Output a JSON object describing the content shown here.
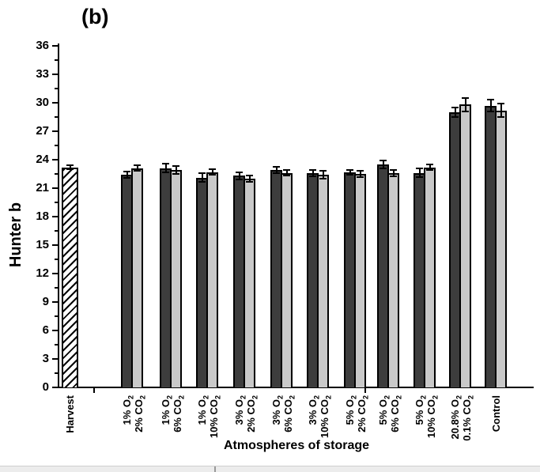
{
  "chart_data": {
    "type": "bar",
    "panel_label": "(b)",
    "xlabel": "Atmospheres of storage",
    "ylabel": "Hunter b",
    "ylim": [
      0,
      36
    ],
    "ytick_step": 3,
    "yticks": [
      0,
      3,
      6,
      9,
      12,
      15,
      18,
      21,
      24,
      27,
      30,
      33,
      36
    ],
    "legend": "none",
    "grid": "off",
    "colors": {
      "dark": "#3d3d3d",
      "light": "#c9c9c9",
      "hatch": "#000000"
    },
    "series_note": [
      {
        "name": "dark-bars",
        "style": "dark gray filled"
      },
      {
        "name": "light-bars",
        "style": "light gray filled"
      },
      {
        "name": "harvest-bar",
        "style": "white with diagonal hatch"
      }
    ],
    "groups": [
      {
        "label_lines": [
          "Harvest"
        ],
        "hatched": true,
        "bars": [
          {
            "value": 23.2,
            "error": 0.2
          }
        ]
      },
      {
        "label_lines": [
          "1% O2",
          "2% CO2"
        ],
        "bars": [
          {
            "value": 22.4,
            "error": 0.35
          },
          {
            "value": 23.1,
            "error": 0.3
          }
        ]
      },
      {
        "label_lines": [
          "1% O2",
          "6% CO2"
        ],
        "bars": [
          {
            "value": 23.1,
            "error": 0.45
          },
          {
            "value": 22.9,
            "error": 0.4
          }
        ]
      },
      {
        "label_lines": [
          "1% O2",
          "10% CO2"
        ],
        "bars": [
          {
            "value": 22.1,
            "error": 0.45
          },
          {
            "value": 22.7,
            "error": 0.3
          }
        ]
      },
      {
        "label_lines": [
          "3% O2",
          "2% CO2"
        ],
        "bars": [
          {
            "value": 22.3,
            "error": 0.4
          },
          {
            "value": 22.0,
            "error": 0.35
          }
        ]
      },
      {
        "label_lines": [
          "3% O2",
          "6% CO2"
        ],
        "bars": [
          {
            "value": 22.9,
            "error": 0.35
          },
          {
            "value": 22.6,
            "error": 0.3
          }
        ]
      },
      {
        "label_lines": [
          "3% O2",
          "10% CO2"
        ],
        "bars": [
          {
            "value": 22.6,
            "error": 0.35
          },
          {
            "value": 22.4,
            "error": 0.4
          }
        ]
      },
      {
        "label_lines": [
          "5% O2",
          "2% CO2"
        ],
        "bars": [
          {
            "value": 22.7,
            "error": 0.25
          },
          {
            "value": 22.5,
            "error": 0.3
          }
        ]
      },
      {
        "label_lines": [
          "5% O2",
          "6% CO2"
        ],
        "bars": [
          {
            "value": 23.5,
            "error": 0.4
          },
          {
            "value": 22.6,
            "error": 0.35
          }
        ]
      },
      {
        "label_lines": [
          "5% O2",
          "10% CO2"
        ],
        "bars": [
          {
            "value": 22.6,
            "error": 0.45
          },
          {
            "value": 23.2,
            "error": 0.3
          }
        ]
      },
      {
        "label_lines": [
          "20.8% O2",
          "0.1% CO2"
        ],
        "bars": [
          {
            "value": 29.0,
            "error": 0.5
          },
          {
            "value": 29.8,
            "error": 0.7
          }
        ]
      },
      {
        "label_lines": [
          "Control"
        ],
        "bars": [
          {
            "value": 29.7,
            "error": 0.6
          },
          {
            "value": 29.2,
            "error": 0.7
          }
        ]
      }
    ]
  }
}
